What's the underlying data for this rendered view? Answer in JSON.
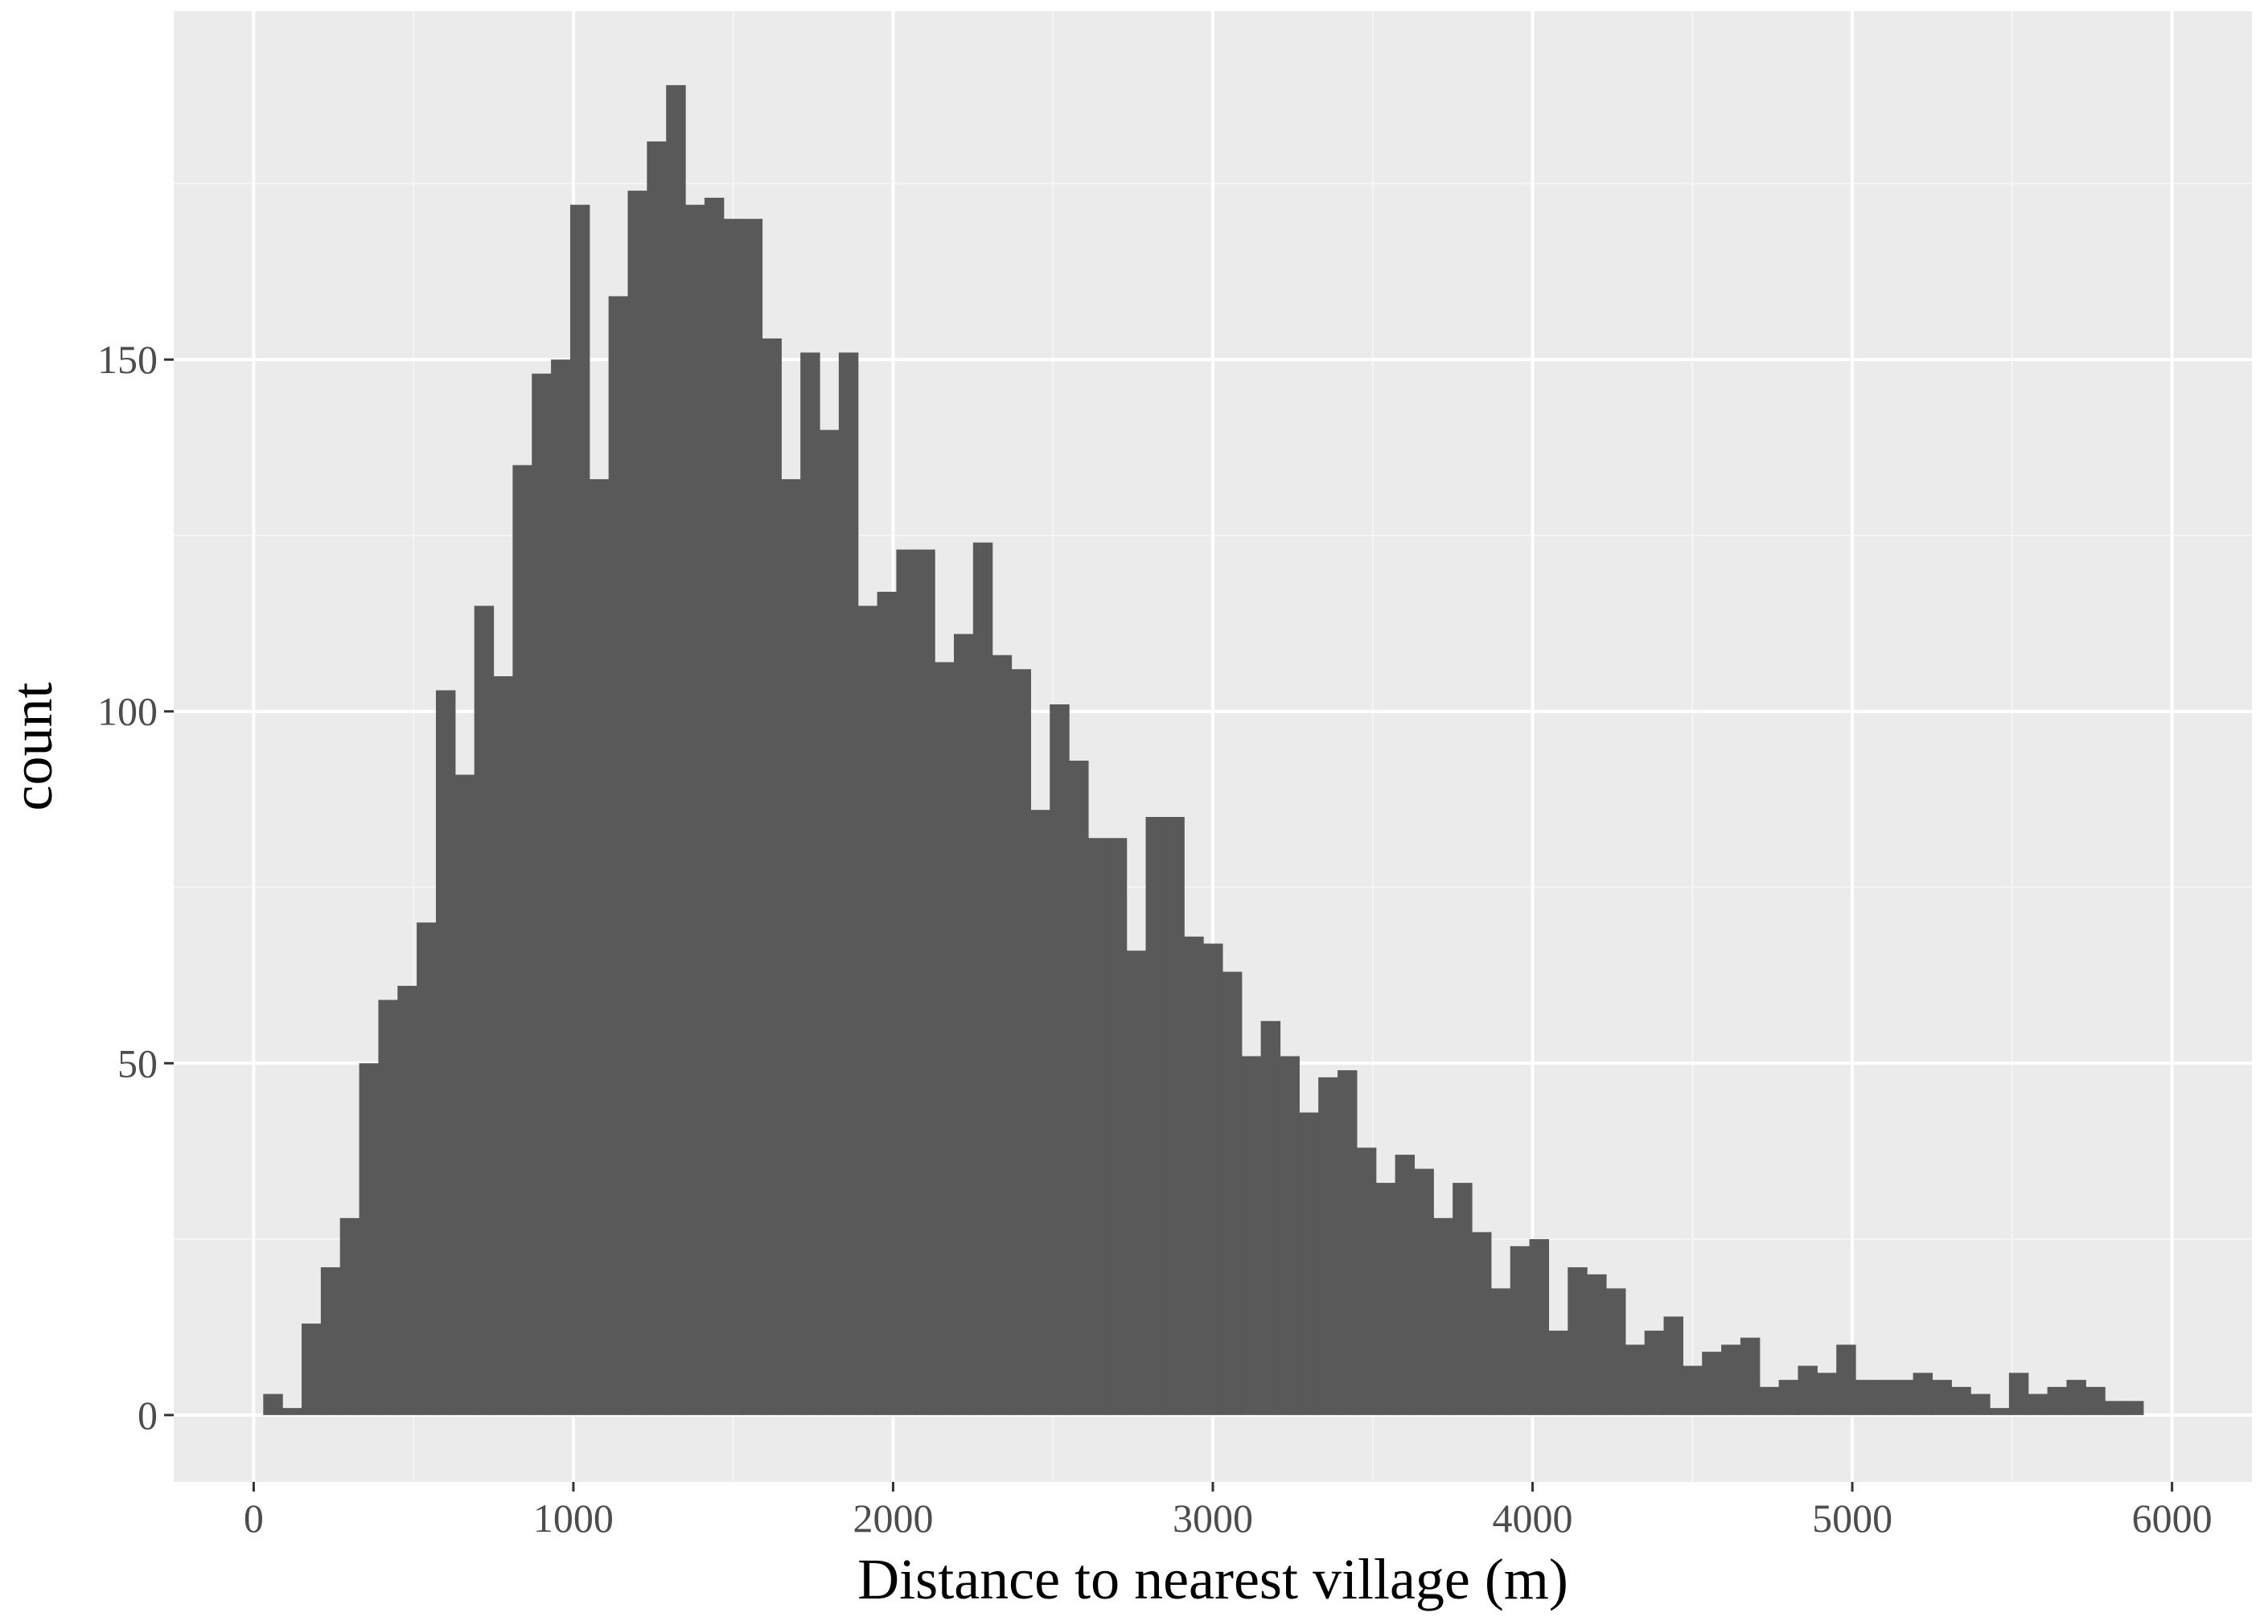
{
  "chart_data": {
    "type": "bar",
    "title": "",
    "xlabel": "Distance to nearest village (m)",
    "ylabel": "count",
    "xlim": [
      -250,
      6250
    ],
    "ylim": [
      -9.5,
      199.5
    ],
    "x_ticks": [
      0,
      1000,
      2000,
      3000,
      4000,
      5000,
      6000
    ],
    "x_tick_labels": [
      "0",
      "1000",
      "2000",
      "3000",
      "4000",
      "5000",
      "6000"
    ],
    "y_ticks": [
      0,
      50,
      100,
      150
    ],
    "y_tick_labels": [
      "0",
      "50",
      "100",
      "150"
    ],
    "grid": true,
    "legend": "none",
    "bin_width": 60,
    "bin_start": 30,
    "values": [
      3,
      1,
      13,
      21,
      28,
      50,
      59,
      61,
      70,
      103,
      91,
      115,
      105,
      135,
      148,
      150,
      172,
      133,
      159,
      174,
      181,
      189,
      172,
      173,
      170,
      170,
      153,
      133,
      151,
      140,
      151,
      115,
      117,
      123,
      123,
      107,
      111,
      124,
      108,
      106,
      86,
      101,
      93,
      82,
      82,
      66,
      85,
      85,
      68,
      67,
      63,
      51,
      56,
      51,
      43,
      48,
      49,
      38,
      33,
      37,
      35,
      28,
      33,
      26,
      18,
      24,
      25,
      12,
      21,
      20,
      18,
      10,
      12,
      14,
      7,
      9,
      10,
      11,
      4,
      5,
      7,
      6,
      10,
      5,
      5,
      5,
      6,
      5,
      4,
      3,
      1,
      6,
      3,
      4,
      5,
      4,
      2,
      2
    ]
  },
  "colors": {
    "panel": "#ebebeb",
    "grid_major": "#ffffff",
    "grid_minor": "#f5f5f5",
    "bar": "#595959",
    "tick": "#333333"
  }
}
